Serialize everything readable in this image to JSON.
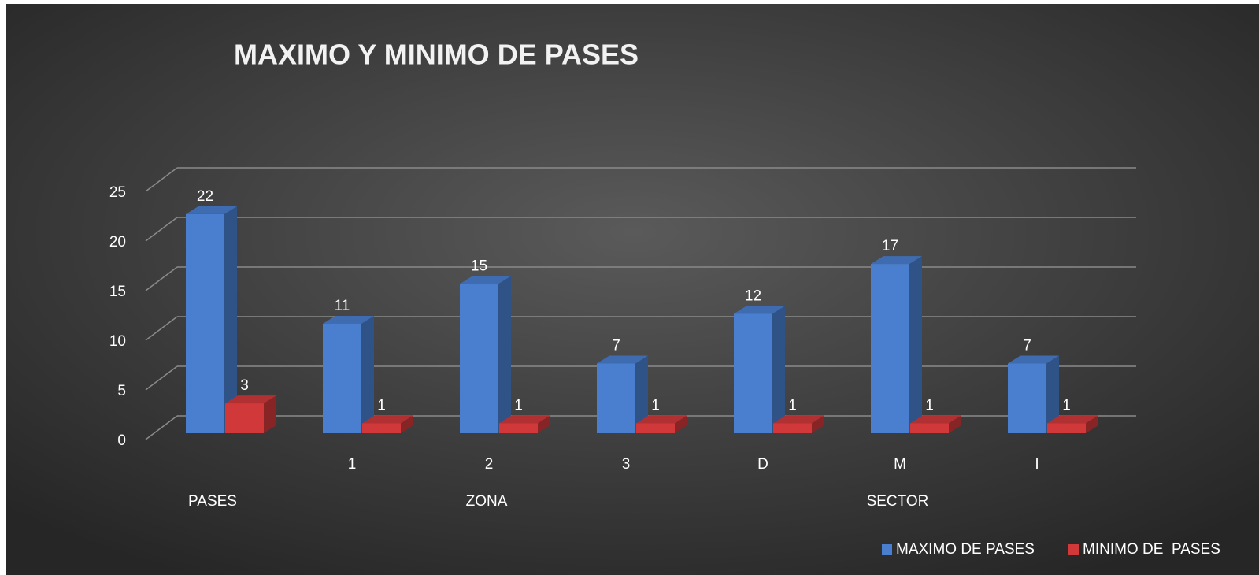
{
  "chart_data": {
    "type": "bar3d",
    "title": "MAXIMO Y MINIMO DE PASES",
    "categories": [
      null,
      "1",
      "2",
      "3",
      "D",
      "M",
      "I"
    ],
    "groups": [
      {
        "label": "PASES",
        "size": 1
      },
      {
        "label": "ZONA",
        "size": 3
      },
      {
        "label": "SECTOR",
        "size": 3
      }
    ],
    "series": [
      {
        "name": "MAXIMO DE PASES",
        "color": "#4a7fcf",
        "values": [
          22,
          11,
          15,
          7,
          12,
          17,
          7
        ]
      },
      {
        "name": "MINIMO DE  PASES",
        "color": "#d0383a",
        "values": [
          3,
          1,
          1,
          1,
          1,
          1,
          1
        ]
      }
    ],
    "ylim": [
      0,
      25
    ],
    "yticks": [
      0,
      5,
      10,
      15,
      20,
      25
    ],
    "grid": true,
    "legend": "bottom-right"
  }
}
